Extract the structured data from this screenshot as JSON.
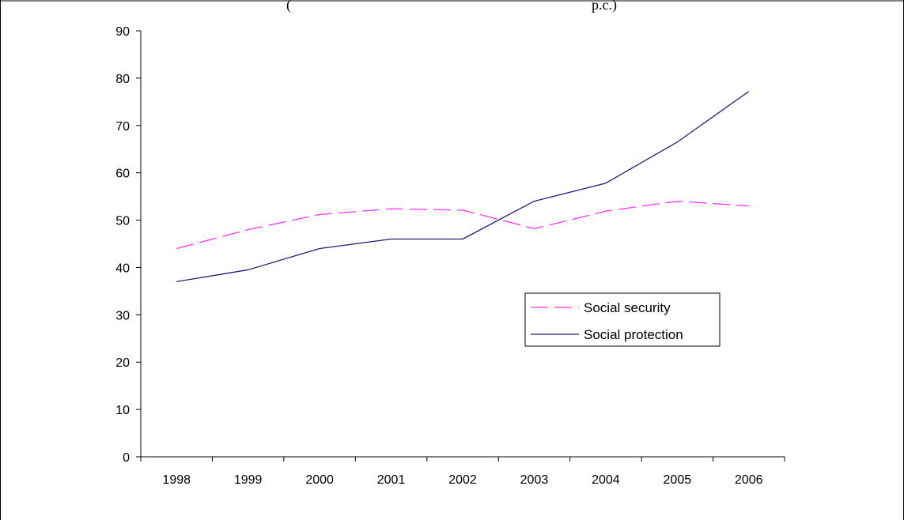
{
  "chart_data": {
    "type": "line",
    "title": "(",
    "title_right": "p.c.)",
    "categories": [
      "1998",
      "1999",
      "2000",
      "2001",
      "2002",
      "2003",
      "2004",
      "2005",
      "2006"
    ],
    "series": [
      {
        "name": "Social security",
        "values": [
          44,
          48,
          51.2,
          52.4,
          52.1,
          48.2,
          51.9,
          54,
          53
        ],
        "color": "#ff33ff",
        "dash": "dashed"
      },
      {
        "name": "Social protection",
        "values": [
          37,
          39.5,
          44,
          46,
          46,
          54,
          57.8,
          66.5,
          77.2
        ],
        "color": "#1f1f7a",
        "dash": "solid"
      }
    ],
    "y_ticks": [
      0,
      10,
      20,
      30,
      40,
      50,
      60,
      70,
      80,
      90
    ],
    "ylim": [
      0,
      90
    ],
    "grid": false,
    "legend_position": "right-middle"
  }
}
